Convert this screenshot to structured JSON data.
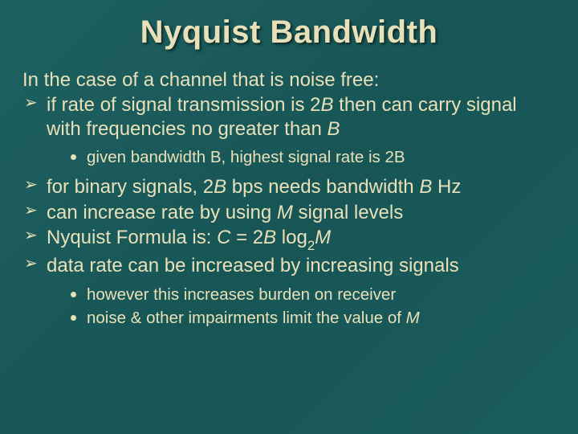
{
  "colors": {
    "background": "#1a5c5c",
    "text": "#e8e0b8",
    "title_shadow": "rgba(0,0,0,0.6)"
  },
  "typography": {
    "title_fontsize": 40,
    "body_fontsize": 24,
    "sub_fontsize": 20.5,
    "font_family": "Arial"
  },
  "title": "Nyquist Bandwidth",
  "intro": "In the case of a channel that is noise free:",
  "bullets1": {
    "b0": {
      "pre": "if rate of signal transmission is 2",
      "var1": "B",
      "mid": " then can carry signal with frequencies no greater than ",
      "var2": "B"
    },
    "b1": {
      "pre": "for binary signals, 2",
      "var1": "B",
      "mid": " bps needs bandwidth ",
      "var2": "B",
      "post": " Hz"
    },
    "b2": {
      "pre": "can increase rate by using ",
      "var1": "M",
      "post": " signal levels"
    },
    "b3": {
      "pre": "Nyquist Formula is: ",
      "f_c": "C",
      "f_eq": " = 2",
      "f_b": "B",
      "f_log": " log",
      "f_sub": "2",
      "f_m": "M"
    },
    "b4": "data rate can be increased by increasing signals"
  },
  "sub_a": "given bandwidth B, highest signal rate is 2B",
  "sub_b": {
    "s0": "however this increases burden on receiver",
    "s1_pre": "noise & other impairments limit the value of ",
    "s1_var": "M"
  }
}
